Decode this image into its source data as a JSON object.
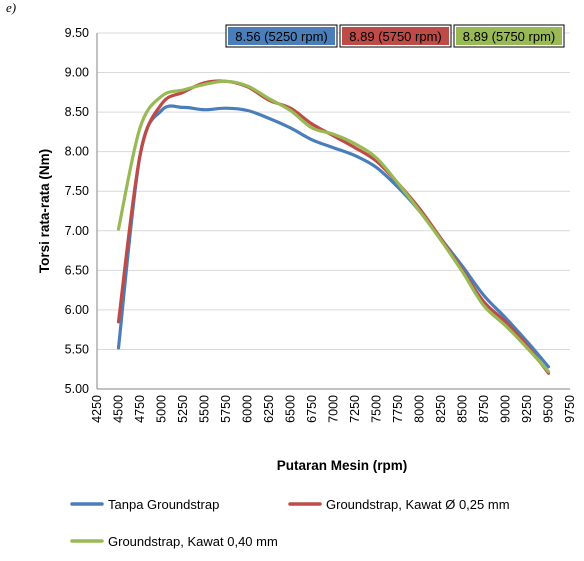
{
  "figure_label": "e)",
  "chart_data": {
    "type": "line",
    "title": "",
    "xlabel": "Putaran Mesin (rpm)",
    "ylabel": "Torsi rata-rata (Nm)",
    "xlim": [
      4250,
      9750
    ],
    "ylim": [
      5.0,
      9.5
    ],
    "x_ticks": [
      "4250",
      "4500",
      "4750",
      "5000",
      "5250",
      "5500",
      "5750",
      "6000",
      "6250",
      "6500",
      "6750",
      "7000",
      "7250",
      "7500",
      "7750",
      "8000",
      "8250",
      "8500",
      "8750",
      "9000",
      "9250",
      "9500",
      "9750"
    ],
    "y_ticks": [
      "9.50",
      "9.00",
      "8.50",
      "8.00",
      "7.50",
      "7.00",
      "6.50",
      "6.00",
      "5.50",
      "5.00"
    ],
    "grid": "horizontal",
    "legend_position": "bottom",
    "x": [
      4500,
      4750,
      5000,
      5250,
      5500,
      5750,
      6000,
      6250,
      6500,
      6750,
      7000,
      7250,
      7500,
      7750,
      8000,
      8250,
      8500,
      8750,
      9000,
      9250,
      9500
    ],
    "series": [
      {
        "name": "Tanpa Groundstrap",
        "color": "#4a7ebb",
        "values": [
          5.52,
          7.95,
          8.52,
          8.56,
          8.53,
          8.55,
          8.52,
          8.42,
          8.3,
          8.15,
          8.05,
          7.95,
          7.8,
          7.55,
          7.25,
          6.9,
          6.55,
          6.18,
          5.9,
          5.6,
          5.28
        ]
      },
      {
        "name": "Groundstrap, Kawat Ø 0,25 mm",
        "color": "#be4b48",
        "values": [
          5.85,
          7.95,
          8.6,
          8.75,
          8.87,
          8.89,
          8.82,
          8.65,
          8.55,
          8.35,
          8.2,
          8.05,
          7.88,
          7.6,
          7.28,
          6.9,
          6.5,
          6.1,
          5.85,
          5.55,
          5.2
        ]
      },
      {
        "name": "Groundstrap, Kawat 0,40 mm",
        "color": "#98b954",
        "values": [
          7.02,
          8.3,
          8.7,
          8.78,
          8.85,
          8.89,
          8.83,
          8.67,
          8.52,
          8.3,
          8.22,
          8.1,
          7.92,
          7.6,
          7.25,
          6.88,
          6.48,
          6.05,
          5.8,
          5.52,
          5.22
        ]
      }
    ],
    "annotations": [
      {
        "text": "8.56 (5250 rpm)",
        "color": "#4a7ebb"
      },
      {
        "text": "8.89 (5750 rpm)",
        "color": "#be4b48"
      },
      {
        "text": "8.89 (5750 rpm)",
        "color": "#98b954"
      }
    ]
  }
}
